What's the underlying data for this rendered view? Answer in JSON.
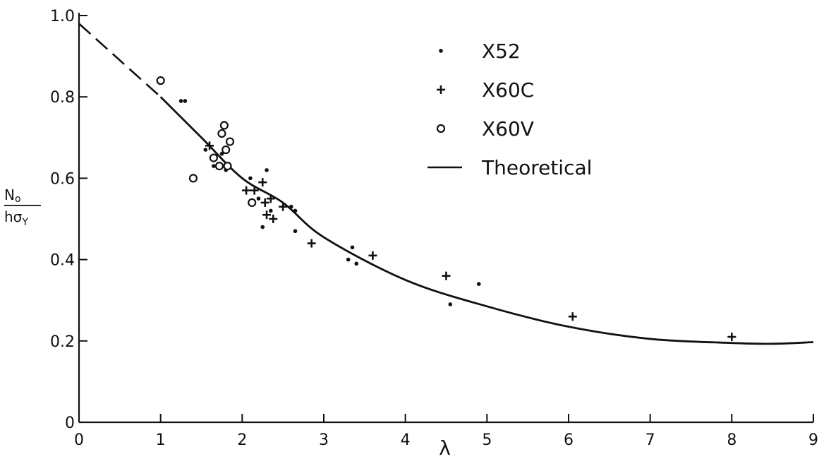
{
  "chart_data": {
    "type": "scatter",
    "title": "",
    "xlabel": "λ",
    "ylabel": {
      "numerator": "N",
      "numerator_sub": "o",
      "denominator": "hσ",
      "denominator_sub": "Y"
    },
    "xlim": [
      0,
      9
    ],
    "ylim": [
      0,
      1.0
    ],
    "x_ticks": [
      0,
      1,
      2,
      3,
      4,
      5,
      6,
      7,
      8,
      9
    ],
    "y_ticks": [
      0,
      0.2,
      0.4,
      0.6,
      0.8,
      1.0
    ],
    "x_tick_labels": [
      "0",
      "1",
      "2",
      "3",
      "4",
      "5",
      "6",
      "7",
      "8",
      "9"
    ],
    "y_tick_labels": [
      "0",
      "0.2",
      "0.4",
      "0.6",
      "0.8",
      "1.0"
    ],
    "grid": false,
    "legend_position": "top-right",
    "series": [
      {
        "name": "X52",
        "marker": "dot",
        "points": [
          [
            1.25,
            0.79
          ],
          [
            1.3,
            0.79
          ],
          [
            1.55,
            0.67
          ],
          [
            1.65,
            0.63
          ],
          [
            1.75,
            0.66
          ],
          [
            1.8,
            0.62
          ],
          [
            2.1,
            0.6
          ],
          [
            2.2,
            0.55
          ],
          [
            2.25,
            0.48
          ],
          [
            2.3,
            0.62
          ],
          [
            2.35,
            0.52
          ],
          [
            2.6,
            0.53
          ],
          [
            2.65,
            0.47
          ],
          [
            2.65,
            0.52
          ],
          [
            3.3,
            0.4
          ],
          [
            3.35,
            0.43
          ],
          [
            3.4,
            0.39
          ],
          [
            4.55,
            0.29
          ],
          [
            4.9,
            0.34
          ]
        ]
      },
      {
        "name": "X60C",
        "marker": "plus",
        "points": [
          [
            1.6,
            0.68
          ],
          [
            2.05,
            0.57
          ],
          [
            2.15,
            0.57
          ],
          [
            2.25,
            0.59
          ],
          [
            2.28,
            0.54
          ],
          [
            2.3,
            0.51
          ],
          [
            2.38,
            0.5
          ],
          [
            2.35,
            0.55
          ],
          [
            2.5,
            0.53
          ],
          [
            2.85,
            0.44
          ],
          [
            3.6,
            0.41
          ],
          [
            4.5,
            0.36
          ],
          [
            6.05,
            0.26
          ],
          [
            8.0,
            0.21
          ]
        ]
      },
      {
        "name": "X60V",
        "marker": "circle",
        "points": [
          [
            1.0,
            0.84
          ],
          [
            1.4,
            0.6
          ],
          [
            1.65,
            0.65
          ],
          [
            1.72,
            0.63
          ],
          [
            1.75,
            0.71
          ],
          [
            1.78,
            0.73
          ],
          [
            1.8,
            0.67
          ],
          [
            1.82,
            0.63
          ],
          [
            1.85,
            0.69
          ],
          [
            2.12,
            0.54
          ]
        ]
      }
    ],
    "theoretical": {
      "name": "Theoretical",
      "dashed_segment": [
        [
          0,
          0.98
        ],
        [
          1.0,
          0.8
        ]
      ],
      "solid_curve": [
        [
          1.0,
          0.8
        ],
        [
          1.5,
          0.7
        ],
        [
          2.0,
          0.6
        ],
        [
          2.5,
          0.54
        ],
        [
          3.0,
          0.455
        ],
        [
          4.0,
          0.35
        ],
        [
          5.0,
          0.285
        ],
        [
          6.0,
          0.235
        ],
        [
          7.0,
          0.205
        ],
        [
          8.0,
          0.195
        ],
        [
          8.5,
          0.193
        ],
        [
          9.0,
          0.197
        ]
      ]
    }
  }
}
